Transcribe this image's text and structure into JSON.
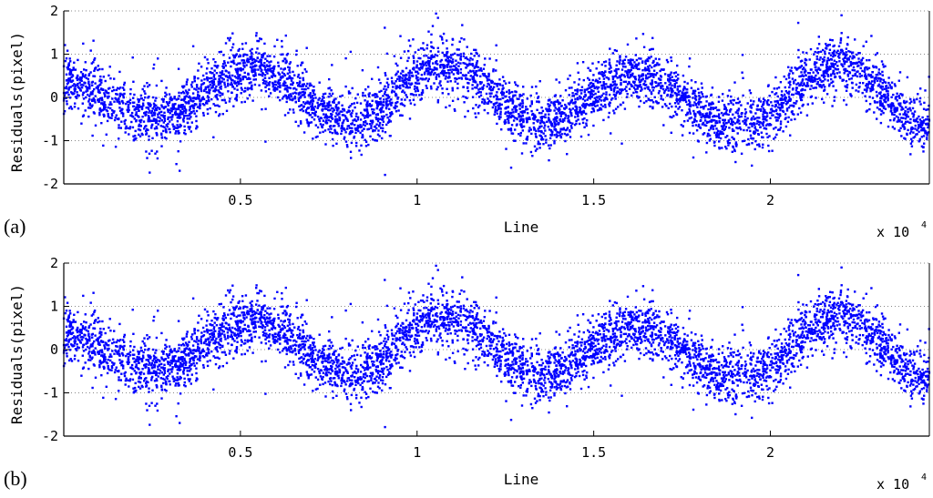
{
  "chart_data": [
    {
      "panel_label": "(a)",
      "type": "scatter",
      "xlabel": "Line",
      "ylabel": "Residuals(pixel)",
      "x_multiplier": "x 10",
      "x_multiplier_exp": "4",
      "xlim": [
        0,
        24500
      ],
      "ylim": [
        -2,
        2
      ],
      "xticks": [
        5000,
        10000,
        15000,
        20000
      ],
      "xtick_labels": [
        "0.5",
        "1",
        "1.5",
        "2"
      ],
      "yticks": [
        2,
        1,
        0,
        -1,
        -2
      ],
      "ytick_labels": [
        "2",
        "1",
        "0",
        "-1",
        "-2"
      ],
      "grid": "horizontal dotted",
      "marker_color": "#0000ff",
      "pattern": {
        "description": "sinusoidal band of residuals",
        "period": 5300,
        "amplitude": 0.55,
        "phase_peak_x": 5300,
        "band_halfwidth": 0.75,
        "centre": 0.05
      },
      "bands": [
        {
          "x": 0,
          "center": 0.35
        },
        {
          "x": 2600,
          "center": -0.45
        },
        {
          "x": 5300,
          "center": 0.65
        },
        {
          "x": 8100,
          "center": -0.55
        },
        {
          "x": 10700,
          "center": 0.75
        },
        {
          "x": 13500,
          "center": -0.55
        },
        {
          "x": 16200,
          "center": 0.45
        },
        {
          "x": 19100,
          "center": -0.65
        },
        {
          "x": 22000,
          "center": 0.75
        },
        {
          "x": 24500,
          "center": -0.65
        }
      ]
    },
    {
      "panel_label": "(b)",
      "type": "scatter",
      "xlabel": "Line",
      "ylabel": "Residuals(pixel)",
      "x_multiplier": "x 10",
      "x_multiplier_exp": "4",
      "xlim": [
        0,
        24500
      ],
      "ylim": [
        -2,
        2
      ],
      "xticks": [
        5000,
        10000,
        15000,
        20000
      ],
      "xtick_labels": [
        "0.5",
        "1",
        "1.5",
        "2"
      ],
      "yticks": [
        2,
        1,
        0,
        -1,
        -2
      ],
      "ytick_labels": [
        "2",
        "1",
        "0",
        "-1",
        "-2"
      ],
      "grid": "horizontal dotted",
      "marker_color": "#0000ff",
      "bands": [
        {
          "x": 0,
          "center": 0.35
        },
        {
          "x": 2600,
          "center": -0.45
        },
        {
          "x": 5300,
          "center": 0.65
        },
        {
          "x": 8100,
          "center": -0.55
        },
        {
          "x": 10700,
          "center": 0.75
        },
        {
          "x": 13500,
          "center": -0.55
        },
        {
          "x": 16200,
          "center": 0.45
        },
        {
          "x": 19100,
          "center": -0.65
        },
        {
          "x": 22000,
          "center": 0.75
        },
        {
          "x": 24500,
          "center": -0.65
        }
      ]
    }
  ]
}
